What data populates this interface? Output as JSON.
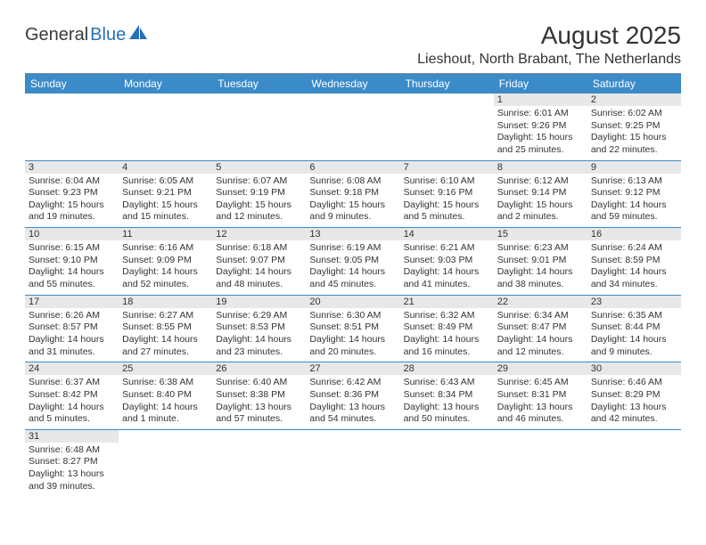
{
  "logo": {
    "text1": "General",
    "text2": "Blue"
  },
  "title": "August 2025",
  "location": "Lieshout, North Brabant, The Netherlands",
  "colors": {
    "header_bg": "#3b8bc9",
    "header_text": "#ffffff",
    "daynum_bg": "#e8e8e8",
    "border": "#3b8bc9",
    "text": "#333333",
    "logo_blue": "#2570b8"
  },
  "weekdays": [
    "Sunday",
    "Monday",
    "Tuesday",
    "Wednesday",
    "Thursday",
    "Friday",
    "Saturday"
  ],
  "weeks": [
    [
      {
        "n": "",
        "lines": []
      },
      {
        "n": "",
        "lines": []
      },
      {
        "n": "",
        "lines": []
      },
      {
        "n": "",
        "lines": []
      },
      {
        "n": "",
        "lines": []
      },
      {
        "n": "1",
        "lines": [
          "Sunrise: 6:01 AM",
          "Sunset: 9:26 PM",
          "Daylight: 15 hours",
          "and 25 minutes."
        ]
      },
      {
        "n": "2",
        "lines": [
          "Sunrise: 6:02 AM",
          "Sunset: 9:25 PM",
          "Daylight: 15 hours",
          "and 22 minutes."
        ]
      }
    ],
    [
      {
        "n": "3",
        "lines": [
          "Sunrise: 6:04 AM",
          "Sunset: 9:23 PM",
          "Daylight: 15 hours",
          "and 19 minutes."
        ]
      },
      {
        "n": "4",
        "lines": [
          "Sunrise: 6:05 AM",
          "Sunset: 9:21 PM",
          "Daylight: 15 hours",
          "and 15 minutes."
        ]
      },
      {
        "n": "5",
        "lines": [
          "Sunrise: 6:07 AM",
          "Sunset: 9:19 PM",
          "Daylight: 15 hours",
          "and 12 minutes."
        ]
      },
      {
        "n": "6",
        "lines": [
          "Sunrise: 6:08 AM",
          "Sunset: 9:18 PM",
          "Daylight: 15 hours",
          "and 9 minutes."
        ]
      },
      {
        "n": "7",
        "lines": [
          "Sunrise: 6:10 AM",
          "Sunset: 9:16 PM",
          "Daylight: 15 hours",
          "and 5 minutes."
        ]
      },
      {
        "n": "8",
        "lines": [
          "Sunrise: 6:12 AM",
          "Sunset: 9:14 PM",
          "Daylight: 15 hours",
          "and 2 minutes."
        ]
      },
      {
        "n": "9",
        "lines": [
          "Sunrise: 6:13 AM",
          "Sunset: 9:12 PM",
          "Daylight: 14 hours",
          "and 59 minutes."
        ]
      }
    ],
    [
      {
        "n": "10",
        "lines": [
          "Sunrise: 6:15 AM",
          "Sunset: 9:10 PM",
          "Daylight: 14 hours",
          "and 55 minutes."
        ]
      },
      {
        "n": "11",
        "lines": [
          "Sunrise: 6:16 AM",
          "Sunset: 9:09 PM",
          "Daylight: 14 hours",
          "and 52 minutes."
        ]
      },
      {
        "n": "12",
        "lines": [
          "Sunrise: 6:18 AM",
          "Sunset: 9:07 PM",
          "Daylight: 14 hours",
          "and 48 minutes."
        ]
      },
      {
        "n": "13",
        "lines": [
          "Sunrise: 6:19 AM",
          "Sunset: 9:05 PM",
          "Daylight: 14 hours",
          "and 45 minutes."
        ]
      },
      {
        "n": "14",
        "lines": [
          "Sunrise: 6:21 AM",
          "Sunset: 9:03 PM",
          "Daylight: 14 hours",
          "and 41 minutes."
        ]
      },
      {
        "n": "15",
        "lines": [
          "Sunrise: 6:23 AM",
          "Sunset: 9:01 PM",
          "Daylight: 14 hours",
          "and 38 minutes."
        ]
      },
      {
        "n": "16",
        "lines": [
          "Sunrise: 6:24 AM",
          "Sunset: 8:59 PM",
          "Daylight: 14 hours",
          "and 34 minutes."
        ]
      }
    ],
    [
      {
        "n": "17",
        "lines": [
          "Sunrise: 6:26 AM",
          "Sunset: 8:57 PM",
          "Daylight: 14 hours",
          "and 31 minutes."
        ]
      },
      {
        "n": "18",
        "lines": [
          "Sunrise: 6:27 AM",
          "Sunset: 8:55 PM",
          "Daylight: 14 hours",
          "and 27 minutes."
        ]
      },
      {
        "n": "19",
        "lines": [
          "Sunrise: 6:29 AM",
          "Sunset: 8:53 PM",
          "Daylight: 14 hours",
          "and 23 minutes."
        ]
      },
      {
        "n": "20",
        "lines": [
          "Sunrise: 6:30 AM",
          "Sunset: 8:51 PM",
          "Daylight: 14 hours",
          "and 20 minutes."
        ]
      },
      {
        "n": "21",
        "lines": [
          "Sunrise: 6:32 AM",
          "Sunset: 8:49 PM",
          "Daylight: 14 hours",
          "and 16 minutes."
        ]
      },
      {
        "n": "22",
        "lines": [
          "Sunrise: 6:34 AM",
          "Sunset: 8:47 PM",
          "Daylight: 14 hours",
          "and 12 minutes."
        ]
      },
      {
        "n": "23",
        "lines": [
          "Sunrise: 6:35 AM",
          "Sunset: 8:44 PM",
          "Daylight: 14 hours",
          "and 9 minutes."
        ]
      }
    ],
    [
      {
        "n": "24",
        "lines": [
          "Sunrise: 6:37 AM",
          "Sunset: 8:42 PM",
          "Daylight: 14 hours",
          "and 5 minutes."
        ]
      },
      {
        "n": "25",
        "lines": [
          "Sunrise: 6:38 AM",
          "Sunset: 8:40 PM",
          "Daylight: 14 hours",
          "and 1 minute."
        ]
      },
      {
        "n": "26",
        "lines": [
          "Sunrise: 6:40 AM",
          "Sunset: 8:38 PM",
          "Daylight: 13 hours",
          "and 57 minutes."
        ]
      },
      {
        "n": "27",
        "lines": [
          "Sunrise: 6:42 AM",
          "Sunset: 8:36 PM",
          "Daylight: 13 hours",
          "and 54 minutes."
        ]
      },
      {
        "n": "28",
        "lines": [
          "Sunrise: 6:43 AM",
          "Sunset: 8:34 PM",
          "Daylight: 13 hours",
          "and 50 minutes."
        ]
      },
      {
        "n": "29",
        "lines": [
          "Sunrise: 6:45 AM",
          "Sunset: 8:31 PM",
          "Daylight: 13 hours",
          "and 46 minutes."
        ]
      },
      {
        "n": "30",
        "lines": [
          "Sunrise: 6:46 AM",
          "Sunset: 8:29 PM",
          "Daylight: 13 hours",
          "and 42 minutes."
        ]
      }
    ],
    [
      {
        "n": "31",
        "lines": [
          "Sunrise: 6:48 AM",
          "Sunset: 8:27 PM",
          "Daylight: 13 hours",
          "and 39 minutes."
        ]
      },
      {
        "n": "",
        "lines": []
      },
      {
        "n": "",
        "lines": []
      },
      {
        "n": "",
        "lines": []
      },
      {
        "n": "",
        "lines": []
      },
      {
        "n": "",
        "lines": []
      },
      {
        "n": "",
        "lines": []
      }
    ]
  ]
}
